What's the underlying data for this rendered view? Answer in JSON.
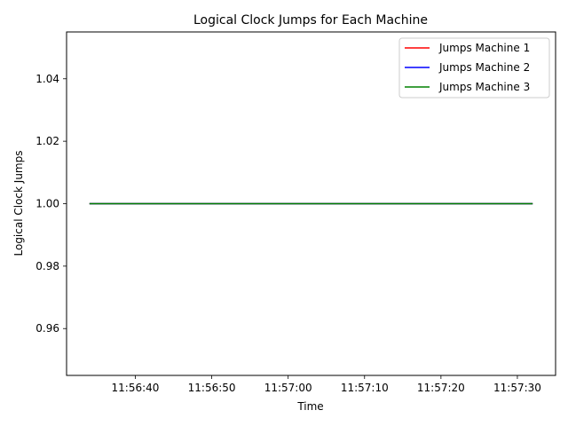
{
  "chart_data": {
    "type": "line",
    "title": "Logical Clock Jumps for Each Machine",
    "xlabel": "Time",
    "ylabel": "Logical Clock Jumps",
    "x_range": [
      "11:56:34",
      "11:57:32"
    ],
    "xlim": [
      "11:56:31",
      "11:57:35"
    ],
    "ylim": [
      0.945,
      1.055
    ],
    "x_ticks": [
      "11:56:40",
      "11:56:50",
      "11:57:00",
      "11:57:10",
      "11:57:20",
      "11:57:30"
    ],
    "y_ticks": [
      "0.96",
      "0.98",
      "1.00",
      "1.02",
      "1.04"
    ],
    "grid": false,
    "legend_position": "top-right",
    "series": [
      {
        "name": "Jumps Machine 1",
        "color": "#ff0000",
        "x": [
          "11:56:34",
          "11:57:32"
        ],
        "values": [
          1.0,
          1.0
        ]
      },
      {
        "name": "Jumps Machine 2",
        "color": "#0000ff",
        "x": [
          "11:56:34",
          "11:57:32"
        ],
        "values": [
          1.0,
          1.0
        ]
      },
      {
        "name": "Jumps Machine 3",
        "color": "#008000",
        "x": [
          "11:56:34",
          "11:57:32"
        ],
        "values": [
          1.0,
          1.0
        ]
      }
    ]
  }
}
